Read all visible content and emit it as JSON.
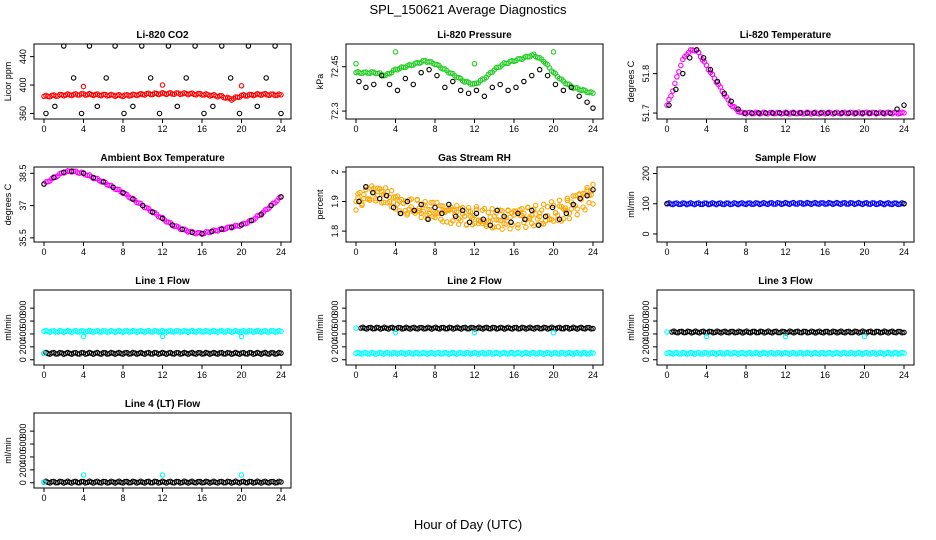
{
  "figure": {
    "title": "SPL_150621  Average Diagnostics",
    "xlabel": "Hour of Day (UTC)"
  },
  "colors": {
    "black": "#000000",
    "red": "#ff0000",
    "green": "#22cc22",
    "magenta": "#ff00ff",
    "orange": "#ffa500",
    "blue": "#0000ff",
    "cyan": "#00ffff"
  },
  "chart_data": [
    {
      "type": "scatter",
      "title": "Li-820 CO2",
      "ylabel": "Licor ppm",
      "xlim": [
        0,
        24
      ],
      "ylim": [
        355,
        455
      ],
      "xticks": [
        0,
        4,
        8,
        12,
        16,
        20,
        24
      ],
      "yticks": [
        360,
        400,
        440
      ],
      "series": [
        {
          "color": "#ff0000",
          "kind": "dense",
          "x": [
            0,
            2,
            4,
            6,
            8,
            10,
            12,
            14,
            16,
            18,
            19,
            20,
            22,
            24
          ],
          "y": [
            384,
            386,
            387,
            386,
            385,
            387,
            388,
            388,
            387,
            384,
            380,
            385,
            387,
            386
          ]
        },
        {
          "color": "#000000",
          "kind": "sparse",
          "x": [
            0.2,
            1.1,
            2.0,
            3.0,
            3.8,
            4.6,
            5.4,
            6.3,
            7.2,
            8.1,
            9.0,
            9.9,
            10.8,
            11.7,
            12.6,
            13.5,
            14.4,
            15.3,
            16.2,
            17.1,
            18.0,
            18.9,
            19.8,
            20.7,
            21.6,
            22.5,
            23.4,
            24.0
          ],
          "y": [
            360,
            370,
            455,
            410,
            360,
            455,
            370,
            410,
            455,
            360,
            370,
            455,
            410,
            360,
            455,
            370,
            410,
            455,
            360,
            370,
            455,
            410,
            360,
            455,
            370,
            410,
            455,
            360
          ]
        },
        {
          "color": "#ff0000",
          "kind": "sparse",
          "x": [
            4,
            12,
            20
          ],
          "y": [
            398,
            400,
            399
          ]
        }
      ]
    },
    {
      "type": "scatter",
      "title": "Li-820 Pressure",
      "ylabel": "kPa",
      "xlim": [
        0,
        24
      ],
      "ylim": [
        72.28,
        72.52
      ],
      "xticks": [
        0,
        4,
        8,
        12,
        16,
        20,
        24
      ],
      "yticks": [
        72.3,
        72.45
      ],
      "series": [
        {
          "color": "#22cc22",
          "kind": "dense",
          "x": [
            0,
            1,
            2,
            3,
            4,
            5,
            6,
            7,
            8,
            9,
            10,
            11,
            12,
            13,
            14,
            15,
            16,
            17,
            18,
            19,
            20,
            21,
            22,
            23,
            24
          ],
          "y": [
            72.43,
            72.43,
            72.43,
            72.42,
            72.44,
            72.45,
            72.46,
            72.47,
            72.46,
            72.44,
            72.42,
            72.4,
            72.39,
            72.41,
            72.44,
            72.46,
            72.47,
            72.48,
            72.49,
            72.47,
            72.43,
            72.4,
            72.38,
            72.37,
            72.36
          ]
        },
        {
          "color": "#000000",
          "kind": "sparse",
          "x": [
            0.3,
            1.0,
            1.8,
            2.6,
            3.4,
            4.2,
            5.0,
            5.8,
            6.6,
            7.4,
            8.2,
            9.0,
            9.8,
            10.6,
            11.4,
            12.2,
            13.0,
            13.8,
            14.6,
            15.4,
            16.2,
            17.0,
            17.8,
            18.6,
            19.4,
            20.2,
            21.0,
            21.8,
            22.6,
            23.4,
            24.0
          ],
          "y": [
            72.4,
            72.38,
            72.39,
            72.42,
            72.39,
            72.37,
            72.41,
            72.39,
            72.43,
            72.44,
            72.42,
            72.38,
            72.4,
            72.37,
            72.36,
            72.37,
            72.35,
            72.38,
            72.39,
            72.37,
            72.38,
            72.4,
            72.42,
            72.44,
            72.42,
            72.39,
            72.37,
            72.38,
            72.35,
            72.33,
            72.31
          ]
        },
        {
          "color": "#22cc22",
          "kind": "sparse",
          "x": [
            0,
            4,
            12,
            20
          ],
          "y": [
            72.46,
            72.5,
            72.46,
            72.5
          ]
        }
      ]
    },
    {
      "type": "scatter",
      "title": "Li-820 Temperature",
      "ylabel": "degrees C",
      "xlim": [
        0,
        24
      ],
      "ylim": [
        51.69,
        51.87
      ],
      "xticks": [
        0,
        4,
        8,
        12,
        16,
        20,
        24
      ],
      "yticks": [
        51.7,
        51.8
      ],
      "series": [
        {
          "color": "#ff00ff",
          "kind": "dense",
          "x": [
            0,
            0.5,
            1,
            1.5,
            2,
            2.5,
            3,
            3.5,
            4,
            4.5,
            5,
            5.5,
            6,
            6.5,
            7,
            7.5,
            8,
            10,
            12,
            14,
            16,
            18,
            20,
            22,
            24
          ],
          "y": [
            51.72,
            51.75,
            51.79,
            51.83,
            51.85,
            51.86,
            51.86,
            51.84,
            51.82,
            51.8,
            51.78,
            51.76,
            51.74,
            51.72,
            51.71,
            51.7,
            51.7,
            51.7,
            51.7,
            51.7,
            51.7,
            51.7,
            51.7,
            51.7,
            51.7
          ]
        },
        {
          "color": "#000000",
          "kind": "sparse",
          "x": [
            0.2,
            0.9,
            1.6,
            2.3,
            3.0,
            3.7,
            4.4,
            5.1,
            5.8,
            6.5,
            7.2,
            7.9,
            8.6,
            9.3,
            10.0,
            10.7,
            11.4,
            12.1,
            12.8,
            13.5,
            14.2,
            14.9,
            15.6,
            16.3,
            17.0,
            17.7,
            18.4,
            19.1,
            19.8,
            20.5,
            21.2,
            21.9,
            22.6,
            23.3,
            24.0
          ],
          "y": [
            51.72,
            51.76,
            51.8,
            51.84,
            51.86,
            51.84,
            51.81,
            51.78,
            51.75,
            51.73,
            51.71,
            51.7,
            51.7,
            51.7,
            51.7,
            51.7,
            51.7,
            51.7,
            51.7,
            51.7,
            51.7,
            51.7,
            51.7,
            51.7,
            51.7,
            51.7,
            51.7,
            51.7,
            51.7,
            51.7,
            51.7,
            51.7,
            51.7,
            51.71,
            51.72
          ]
        }
      ]
    },
    {
      "type": "scatter",
      "title": "Ambient Box Temperature",
      "ylabel": "degrees C",
      "xlim": [
        0,
        24
      ],
      "ylim": [
        35.4,
        38.7
      ],
      "xticks": [
        0,
        4,
        8,
        12,
        16,
        20,
        24
      ],
      "yticks": [
        35.5,
        37.0,
        38.5
      ],
      "series": [
        {
          "color": "#ff00ff",
          "kind": "dense",
          "x": [
            0,
            1,
            2,
            2.8,
            4,
            5,
            6,
            7,
            8,
            9,
            10,
            11,
            12,
            13,
            14,
            15,
            16,
            17,
            18,
            19,
            20,
            21,
            22,
            23,
            24
          ],
          "y": [
            38.0,
            38.3,
            38.55,
            38.6,
            38.5,
            38.3,
            38.1,
            37.85,
            37.6,
            37.3,
            37.0,
            36.7,
            36.4,
            36.1,
            35.9,
            35.75,
            35.7,
            35.8,
            35.9,
            36.0,
            36.1,
            36.3,
            36.6,
            37.0,
            37.4
          ]
        },
        {
          "color": "#000000",
          "kind": "sparse",
          "x": [
            0,
            1,
            2,
            2.8,
            4,
            5,
            6,
            7,
            8,
            9,
            10,
            11,
            12,
            13,
            14,
            15,
            16,
            17,
            18,
            19,
            20,
            21,
            22,
            23,
            24
          ],
          "y": [
            38.0,
            38.3,
            38.55,
            38.6,
            38.5,
            38.3,
            38.1,
            37.85,
            37.6,
            37.3,
            37.0,
            36.7,
            36.4,
            36.1,
            35.9,
            35.75,
            35.7,
            35.8,
            35.9,
            36.0,
            36.1,
            36.3,
            36.6,
            37.0,
            37.4
          ]
        }
      ]
    },
    {
      "type": "scatter",
      "title": "Gas Stream RH",
      "ylabel": "percent",
      "xlim": [
        0,
        24
      ],
      "ylim": [
        1.77,
        2.01
      ],
      "xticks": [
        0,
        4,
        8,
        12,
        16,
        20,
        24
      ],
      "yticks": [
        1.8,
        1.9,
        2.0
      ],
      "series": [
        {
          "color": "#ffa500",
          "kind": "band",
          "x": [
            0,
            1,
            2,
            3,
            4,
            5,
            6,
            7,
            8,
            9,
            10,
            11,
            12,
            13,
            14,
            15,
            16,
            17,
            18,
            19,
            20,
            21,
            22,
            23,
            24
          ],
          "y": [
            1.9,
            1.92,
            1.93,
            1.92,
            1.9,
            1.88,
            1.88,
            1.87,
            1.87,
            1.86,
            1.86,
            1.85,
            1.85,
            1.84,
            1.84,
            1.84,
            1.85,
            1.85,
            1.85,
            1.85,
            1.86,
            1.87,
            1.89,
            1.91,
            1.93
          ]
        },
        {
          "color": "#000000",
          "kind": "sparse",
          "x": [
            0.3,
            1.0,
            1.7,
            2.4,
            3.1,
            3.8,
            4.5,
            5.2,
            5.9,
            6.6,
            7.3,
            8.0,
            8.7,
            9.4,
            10.1,
            10.8,
            11.5,
            12.2,
            12.9,
            13.6,
            14.3,
            15.0,
            15.7,
            16.4,
            17.1,
            17.8,
            18.5,
            19.2,
            19.9,
            20.6,
            21.3,
            22.0,
            22.7,
            23.4,
            24.0
          ],
          "y": [
            1.9,
            1.95,
            1.93,
            1.91,
            1.92,
            1.88,
            1.86,
            1.9,
            1.87,
            1.89,
            1.84,
            1.88,
            1.86,
            1.89,
            1.85,
            1.87,
            1.83,
            1.86,
            1.84,
            1.82,
            1.87,
            1.85,
            1.83,
            1.86,
            1.84,
            1.87,
            1.82,
            1.85,
            1.88,
            1.84,
            1.86,
            1.89,
            1.91,
            1.92,
            1.94
          ]
        }
      ]
    },
    {
      "type": "scatter",
      "title": "Sample Flow",
      "ylabel": "ml/min",
      "xlim": [
        0,
        24
      ],
      "ylim": [
        -20,
        215
      ],
      "xticks": [
        0,
        4,
        8,
        12,
        16,
        20,
        24
      ],
      "yticks": [
        0,
        100,
        200
      ],
      "series": [
        {
          "color": "#0000ff",
          "kind": "dense",
          "x": [
            0,
            6,
            12,
            18,
            24
          ],
          "y": [
            100,
            100,
            101,
            101,
            100
          ]
        },
        {
          "color": "#000000",
          "kind": "sparse",
          "x": [
            0,
            24
          ],
          "y": [
            100,
            100
          ]
        }
      ]
    },
    {
      "type": "scatter",
      "title": "Line 1 Flow",
      "ylabel": "ml/min",
      "xlim": [
        0,
        24
      ],
      "ylim": [
        -50,
        1050
      ],
      "xticks": [
        0,
        4,
        8,
        12,
        16,
        20,
        24
      ],
      "yticks": [
        0,
        200,
        400,
        600,
        800
      ],
      "series": [
        {
          "color": "#00ffff",
          "kind": "dense",
          "x": [
            0,
            24
          ],
          "y": [
            440,
            440
          ]
        },
        {
          "color": "#000000",
          "kind": "dense",
          "x": [
            0,
            24
          ],
          "y": [
            100,
            100
          ]
        },
        {
          "color": "#00ffff",
          "kind": "sparse",
          "x": [
            0,
            4,
            12,
            20
          ],
          "y": [
            100,
            360,
            360,
            360
          ]
        }
      ]
    },
    {
      "type": "scatter",
      "title": "Line 2 Flow",
      "ylabel": "ml/min",
      "xlim": [
        0,
        24
      ],
      "ylim": [
        -50,
        1050
      ],
      "xticks": [
        0,
        4,
        8,
        12,
        16,
        20,
        24
      ],
      "yticks": [
        0,
        200,
        400,
        600,
        800
      ],
      "series": [
        {
          "color": "#000000",
          "kind": "dense",
          "x": [
            0.5,
            24
          ],
          "y": [
            490,
            490
          ]
        },
        {
          "color": "#00ffff",
          "kind": "dense",
          "x": [
            0,
            24
          ],
          "y": [
            100,
            100
          ]
        },
        {
          "color": "#00ffff",
          "kind": "sparse",
          "x": [
            0,
            4,
            12,
            20
          ],
          "y": [
            490,
            420,
            420,
            420
          ]
        }
      ]
    },
    {
      "type": "scatter",
      "title": "Line 3 Flow",
      "ylabel": "ml/min",
      "xlim": [
        0,
        24
      ],
      "ylim": [
        -50,
        1050
      ],
      "xticks": [
        0,
        4,
        8,
        12,
        16,
        20,
        24
      ],
      "yticks": [
        0,
        200,
        400,
        600,
        800
      ],
      "series": [
        {
          "color": "#000000",
          "kind": "dense",
          "x": [
            0.5,
            24
          ],
          "y": [
            430,
            430
          ]
        },
        {
          "color": "#00ffff",
          "kind": "dense",
          "x": [
            0,
            24
          ],
          "y": [
            100,
            100
          ]
        },
        {
          "color": "#00ffff",
          "kind": "sparse",
          "x": [
            0,
            4,
            12,
            20
          ],
          "y": [
            430,
            360,
            360,
            360
          ]
        }
      ]
    },
    {
      "type": "scatter",
      "title": "Line 4 (LT) Flow",
      "ylabel": "ml/min",
      "xlim": [
        0,
        24
      ],
      "ylim": [
        -50,
        1050
      ],
      "xticks": [
        0,
        4,
        8,
        12,
        16,
        20,
        24
      ],
      "yticks": [
        0,
        200,
        400,
        600,
        800
      ],
      "series": [
        {
          "color": "#000000",
          "kind": "dense",
          "x": [
            0,
            24
          ],
          "y": [
            10,
            10
          ]
        },
        {
          "color": "#00ffff",
          "kind": "sparse",
          "x": [
            0,
            4,
            12,
            20
          ],
          "y": [
            10,
            120,
            120,
            120
          ]
        }
      ]
    }
  ]
}
